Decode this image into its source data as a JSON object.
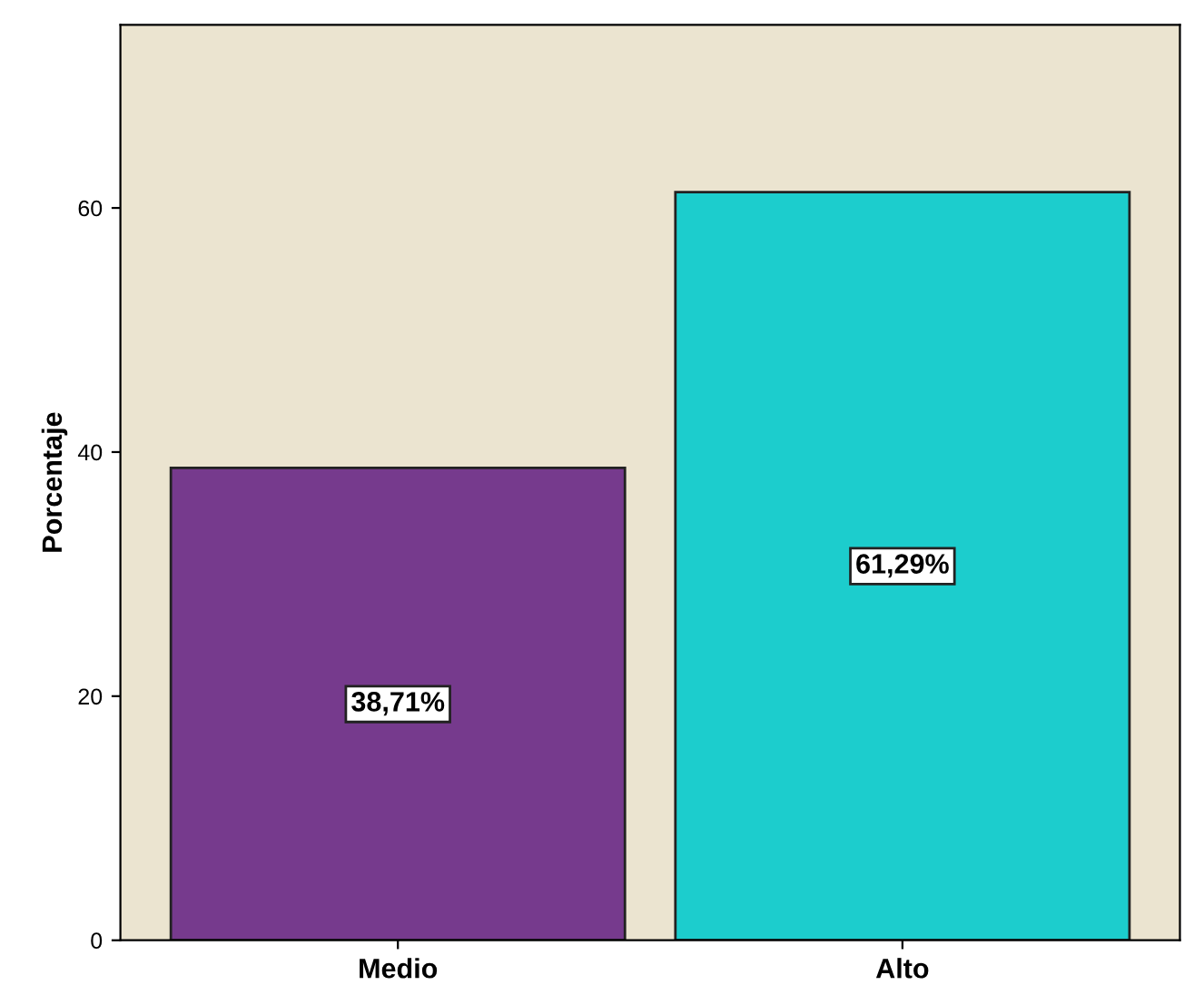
{
  "chart_data": {
    "type": "bar",
    "ylabel": "Porcentaje",
    "categories": [
      "Medio",
      "Alto"
    ],
    "values": [
      38.71,
      61.29
    ],
    "colors": [
      "#763a8d",
      "#1ccdcd"
    ],
    "value_labels": [
      "38,71%",
      "61,29%"
    ],
    "ylim": [
      0,
      75
    ],
    "yticks": [
      0,
      20,
      40,
      60
    ],
    "grid": false,
    "legend": false
  }
}
